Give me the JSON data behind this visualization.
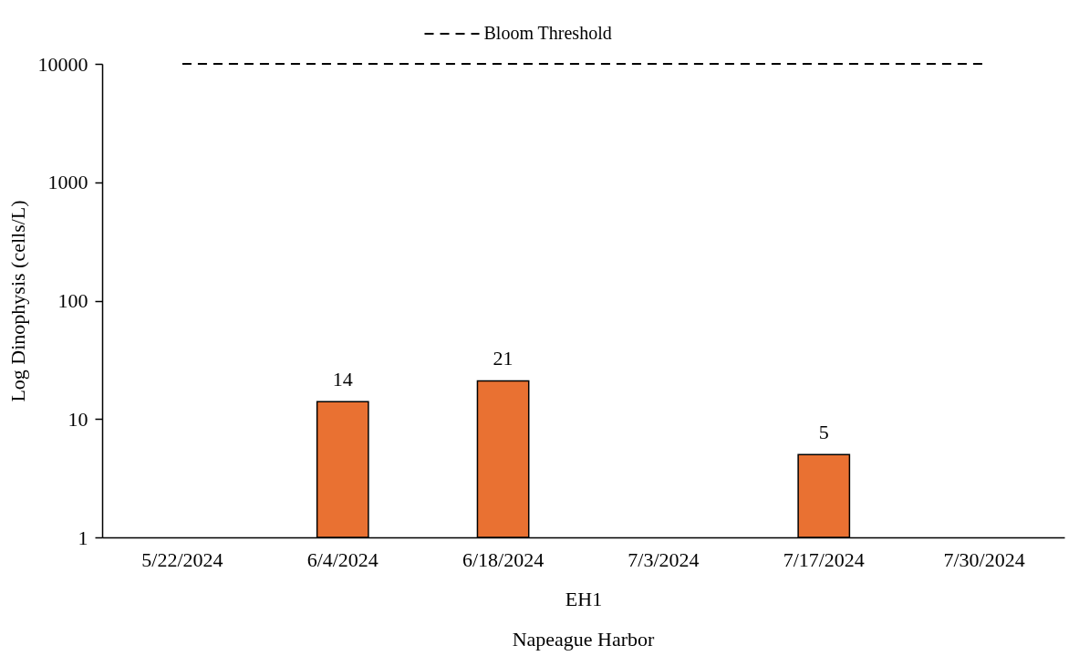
{
  "chart_data": {
    "type": "bar",
    "categories": [
      "5/22/2024",
      "6/4/2024",
      "6/18/2024",
      "7/3/2024",
      "7/17/2024",
      "7/30/2024"
    ],
    "values": [
      null,
      14,
      21,
      null,
      5,
      null
    ],
    "color": "#e97132",
    "ylabel": "Log Dinophysis (cells/L)",
    "xlabel": "EH1",
    "annotations": [
      "Napeague Harbor"
    ],
    "log": true,
    "ylim": [
      1,
      10000
    ],
    "yticks": [
      1,
      10,
      100,
      1000,
      10000
    ],
    "data_labels": true,
    "legend": "top",
    "ref_lines": [
      {
        "axis": "y",
        "value": 10000,
        "label": "Bloom Threshold",
        "color": "#000000",
        "line_style": "dashed"
      }
    ]
  }
}
